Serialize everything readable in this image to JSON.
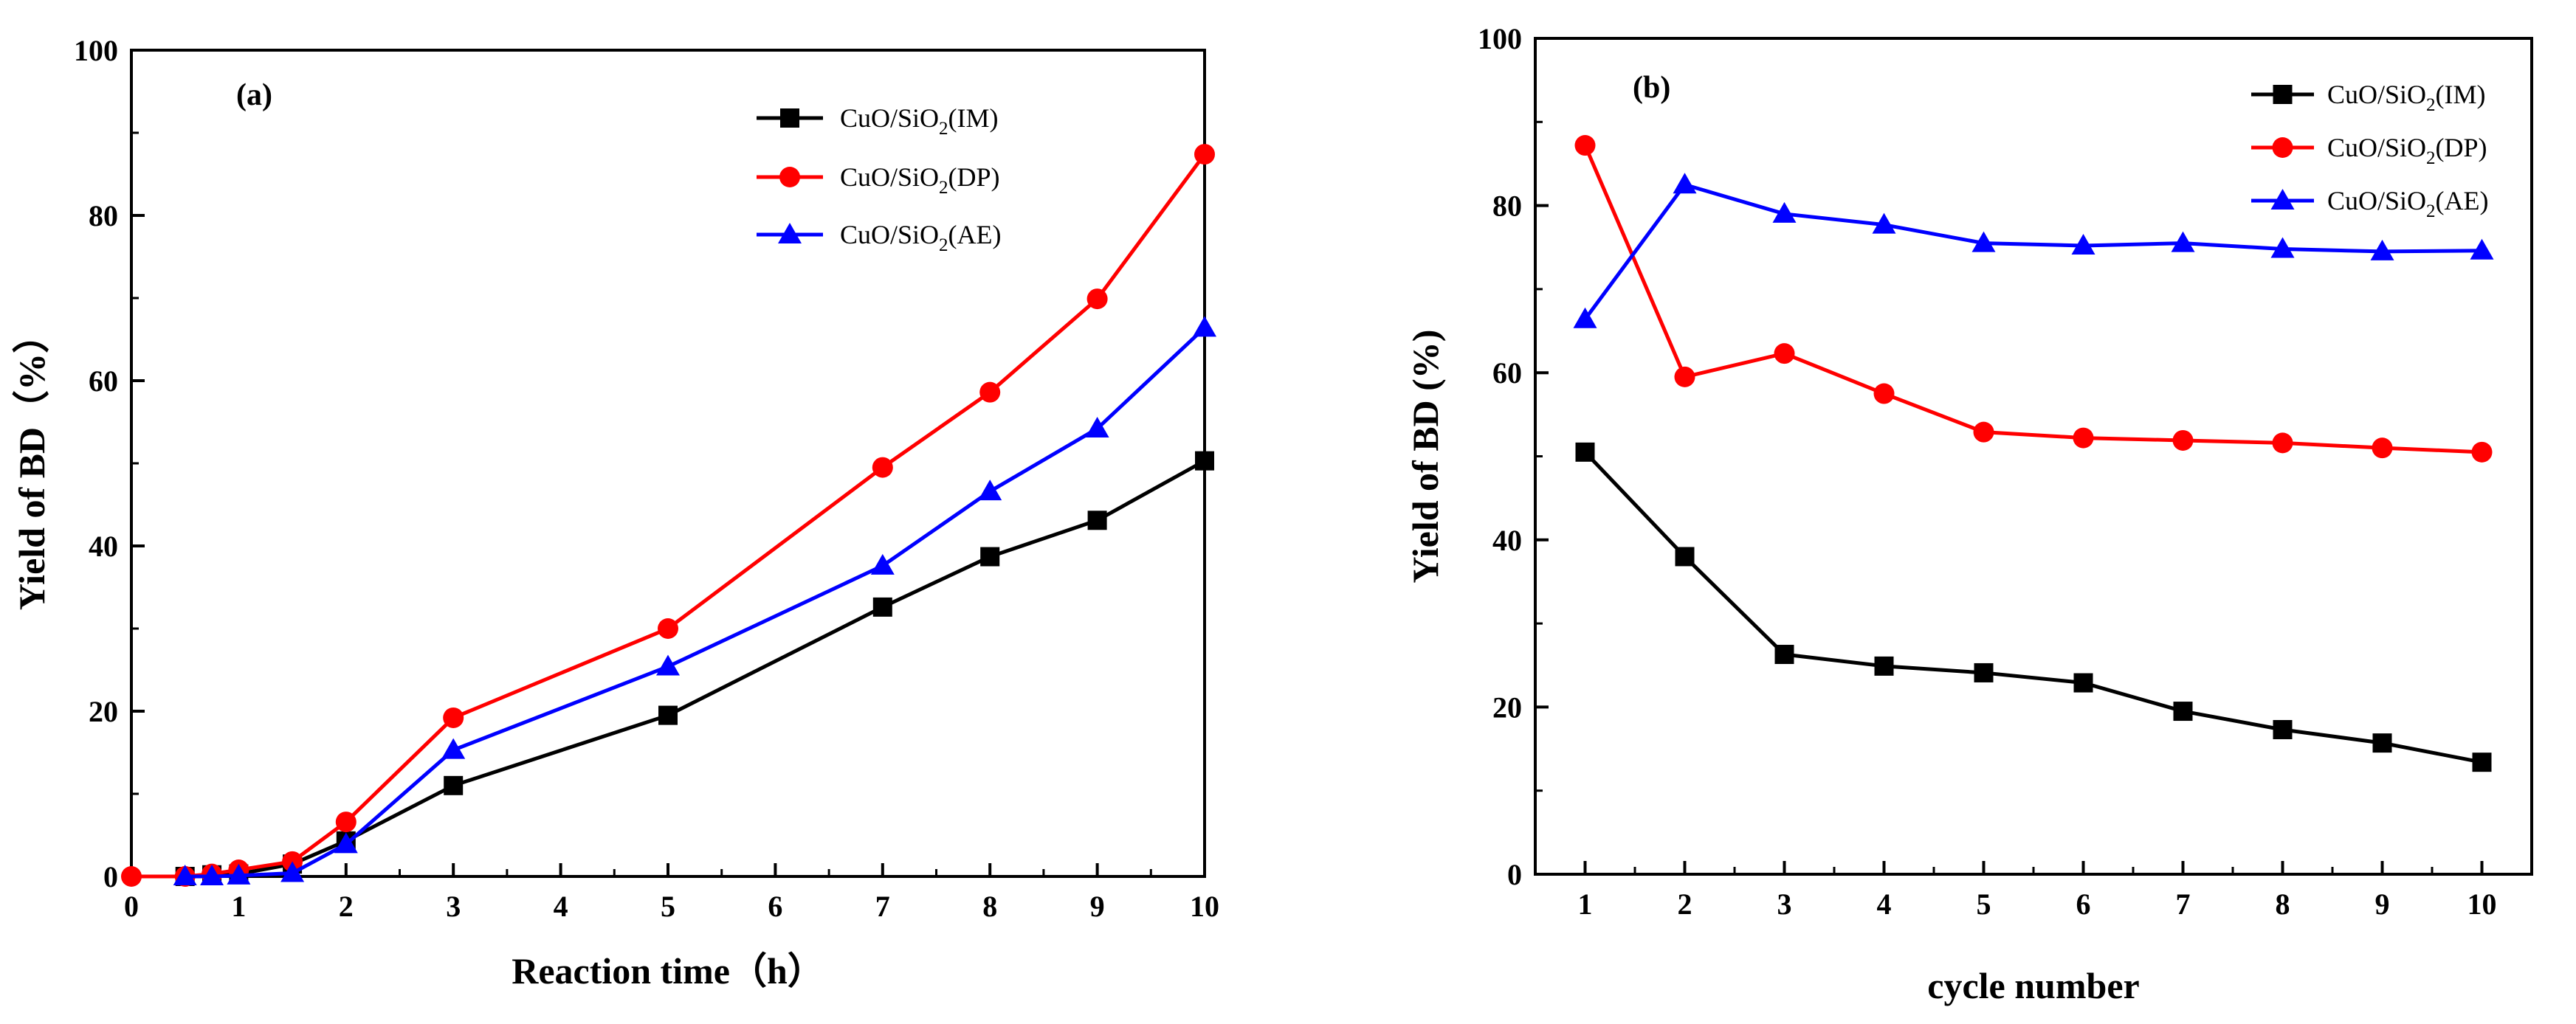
{
  "chart_data": [
    {
      "type": "line",
      "panel_label": "(a)",
      "title": "",
      "xlabel": "Reaction time（h）",
      "ylabel": "Yield of BD（%）",
      "xlim": [
        0,
        10
      ],
      "ylim": [
        0,
        100
      ],
      "xticks": [
        0,
        1,
        2,
        3,
        4,
        5,
        6,
        7,
        8,
        9,
        10
      ],
      "yticks": [
        0,
        20,
        40,
        60,
        80,
        100
      ],
      "legend_position": "top-right",
      "series": [
        {
          "name": "CuO/SiO2(IM)",
          "legend_main": "CuO/SiO",
          "legend_sub": "2",
          "legend_tail": "(IM)",
          "color": "#000000",
          "marker": "square",
          "x": [
            0.5,
            0.75,
            1,
            1.5,
            2,
            3,
            5,
            7,
            8,
            9,
            10
          ],
          "y": [
            0,
            0.2,
            0.3,
            1.5,
            4.3,
            11,
            19.5,
            32.6,
            38.7,
            43.1,
            50.3
          ]
        },
        {
          "name": "CuO/SiO2(DP)",
          "legend_main": "CuO/SiO",
          "legend_sub": "2",
          "legend_tail": "(DP)",
          "color": "#ff0000",
          "marker": "circle",
          "x": [
            0,
            0.5,
            0.75,
            1,
            1.5,
            2,
            3,
            5,
            7,
            8,
            9,
            10
          ],
          "y": [
            0,
            0,
            0.3,
            0.8,
            1.8,
            6.6,
            19.2,
            30,
            49.5,
            58.6,
            69.9,
            87.4
          ]
        },
        {
          "name": "CuO/SiO2(AE)",
          "legend_main": "CuO/SiO",
          "legend_sub": "2",
          "legend_tail": "(AE)",
          "color": "#0000ff",
          "marker": "triangle",
          "x": [
            0.5,
            0.75,
            1,
            1.5,
            2,
            3,
            5,
            7,
            8,
            9,
            10
          ],
          "y": [
            0,
            0,
            0.1,
            0.4,
            3.9,
            15.3,
            25.4,
            37.6,
            46.6,
            54.2,
            66.4
          ]
        }
      ]
    },
    {
      "type": "line",
      "panel_label": "(b)",
      "title": "",
      "xlabel": "cycle number",
      "ylabel": "Yield of BD (%)",
      "xlim": [
        0.5,
        10.5
      ],
      "ylim": [
        0,
        100
      ],
      "xticks": [
        1,
        2,
        3,
        4,
        5,
        6,
        7,
        8,
        9,
        10
      ],
      "yticks": [
        0,
        20,
        40,
        60,
        80,
        100
      ],
      "legend_position": "top-right",
      "series": [
        {
          "name": "CuO/SiO2(IM)",
          "legend_main": "CuO/SiO",
          "legend_sub": "2",
          "legend_tail": "(IM)",
          "color": "#000000",
          "marker": "square",
          "x": [
            1,
            2,
            3,
            4,
            5,
            6,
            7,
            8,
            9,
            10
          ],
          "y": [
            50.5,
            38,
            26.3,
            24.9,
            24.1,
            22.9,
            19.5,
            17.3,
            15.7,
            13.4
          ]
        },
        {
          "name": "CuO/SiO2(DP)",
          "legend_main": "CuO/SiO",
          "legend_sub": "2",
          "legend_tail": "(DP)",
          "color": "#ff0000",
          "marker": "circle",
          "x": [
            1,
            2,
            3,
            4,
            5,
            6,
            7,
            8,
            9,
            10
          ],
          "y": [
            87.2,
            59.5,
            62.3,
            57.5,
            52.9,
            52.2,
            51.9,
            51.6,
            51,
            50.5
          ]
        },
        {
          "name": "CuO/SiO2(AE)",
          "legend_main": "CuO/SiO",
          "legend_sub": "2",
          "legend_tail": "(AE)",
          "color": "#0000ff",
          "marker": "triangle",
          "x": [
            1,
            2,
            3,
            4,
            5,
            6,
            7,
            8,
            9,
            10
          ],
          "y": [
            66.4,
            82.5,
            79,
            77.7,
            75.5,
            75.2,
            75.5,
            74.8,
            74.5,
            74.6
          ]
        }
      ]
    }
  ]
}
